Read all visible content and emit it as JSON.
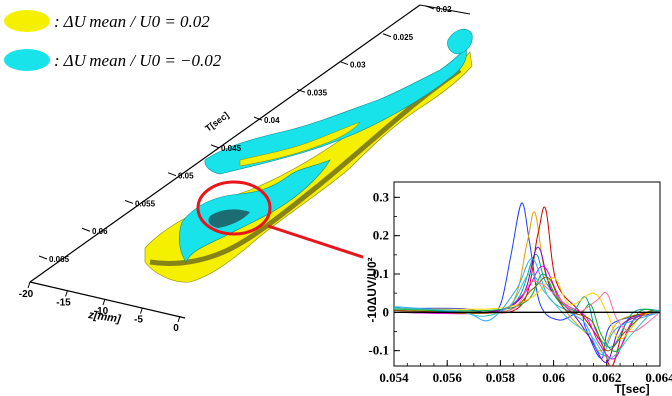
{
  "legend": {
    "items": [
      {
        "label": ": ΔU mean / U0 = 0.02",
        "color": "#f5f000"
      },
      {
        "label": ": ΔU mean / U0 = −0.02",
        "color": "#19e3ea"
      }
    ]
  },
  "plot3d": {
    "t_axis_label": "T[sec]",
    "t_ticks": [
      "0.02",
      "0.025",
      "0.03",
      "0.035",
      "0.04",
      "0.045",
      "0.05",
      "0.055",
      "0.06",
      "0.065"
    ],
    "z_axis_label": "z[mm]",
    "z_ticks": [
      "-20",
      "-15",
      "-10",
      "-5",
      "0"
    ],
    "colors": {
      "yellow": "#f5f000",
      "cyan": "#19e3ea",
      "highlight": "#e8151a"
    }
  },
  "chart_data": {
    "type": "line",
    "xlabel": "T[sec]",
    "ylabel": "-10ΔUV/U0²",
    "xlim": [
      0.054,
      0.064
    ],
    "ylim": [
      -0.14,
      0.34
    ],
    "x_ticks": [
      "0.054",
      "0.056",
      "0.058",
      "0.06",
      "0.062",
      "0.064"
    ],
    "y_ticks": [
      "-0.1",
      "0",
      "0.1",
      "0.2",
      "0.3"
    ],
    "grid": false,
    "series": [
      {
        "color": "#1f3cff",
        "points": [
          [
            0.054,
            0.01
          ],
          [
            0.0565,
            0.01
          ],
          [
            0.0575,
            0.0
          ],
          [
            0.058,
            0.02
          ],
          [
            0.0584,
            0.15
          ],
          [
            0.0588,
            0.285
          ],
          [
            0.0591,
            0.18
          ],
          [
            0.0595,
            0.02
          ],
          [
            0.0602,
            -0.02
          ],
          [
            0.061,
            0.0
          ],
          [
            0.0612,
            -0.04
          ],
          [
            0.0618,
            -0.12
          ],
          [
            0.0622,
            -0.03
          ],
          [
            0.064,
            0.0
          ]
        ]
      },
      {
        "color": "#e0a000",
        "points": [
          [
            0.054,
            0.01
          ],
          [
            0.0568,
            0.0
          ],
          [
            0.0584,
            0.02
          ],
          [
            0.059,
            0.18
          ],
          [
            0.0593,
            0.26
          ],
          [
            0.0597,
            0.1
          ],
          [
            0.0605,
            0.0
          ],
          [
            0.0613,
            -0.06
          ],
          [
            0.0618,
            -0.1
          ],
          [
            0.0625,
            -0.02
          ],
          [
            0.064,
            0.0
          ]
        ]
      },
      {
        "color": "#d00000",
        "points": [
          [
            0.054,
            0.005
          ],
          [
            0.057,
            0.0
          ],
          [
            0.0588,
            0.02
          ],
          [
            0.0594,
            0.2
          ],
          [
            0.0597,
            0.27
          ],
          [
            0.0601,
            0.08
          ],
          [
            0.061,
            0.0
          ],
          [
            0.0618,
            -0.08
          ],
          [
            0.0622,
            -0.14
          ],
          [
            0.0628,
            -0.02
          ],
          [
            0.064,
            0.0
          ]
        ]
      },
      {
        "color": "#00a0a0",
        "points": [
          [
            0.054,
            0.012
          ],
          [
            0.0572,
            0.0
          ],
          [
            0.0586,
            0.03
          ],
          [
            0.0593,
            0.15
          ],
          [
            0.0597,
            0.08
          ],
          [
            0.0606,
            0.0
          ],
          [
            0.0612,
            0.04
          ],
          [
            0.0616,
            -0.05
          ],
          [
            0.0622,
            -0.09
          ],
          [
            0.063,
            0.0
          ],
          [
            0.064,
            0.005
          ]
        ]
      },
      {
        "color": "#7a00c8",
        "points": [
          [
            0.054,
            0.0
          ],
          [
            0.0574,
            0.0
          ],
          [
            0.0588,
            0.04
          ],
          [
            0.0594,
            0.17
          ],
          [
            0.0599,
            0.06
          ],
          [
            0.0608,
            -0.01
          ],
          [
            0.0614,
            -0.07
          ],
          [
            0.062,
            -0.13
          ],
          [
            0.0626,
            -0.03
          ],
          [
            0.064,
            0.0
          ]
        ]
      },
      {
        "color": "#00b030",
        "points": [
          [
            0.054,
            0.008
          ],
          [
            0.0576,
            0.005
          ],
          [
            0.059,
            0.03
          ],
          [
            0.0596,
            0.1
          ],
          [
            0.0602,
            0.03
          ],
          [
            0.061,
            0.0
          ],
          [
            0.0614,
            0.02
          ],
          [
            0.0618,
            -0.06
          ],
          [
            0.0624,
            -0.1
          ],
          [
            0.0632,
            0.0
          ],
          [
            0.064,
            0.0
          ]
        ]
      },
      {
        "color": "#e600e6",
        "points": [
          [
            0.054,
            0.0
          ],
          [
            0.0577,
            0.0
          ],
          [
            0.0589,
            0.05
          ],
          [
            0.0596,
            0.12
          ],
          [
            0.0603,
            0.03
          ],
          [
            0.0612,
            -0.01
          ],
          [
            0.0617,
            -0.08
          ],
          [
            0.0623,
            -0.12
          ],
          [
            0.063,
            -0.02
          ],
          [
            0.064,
            0.0
          ]
        ]
      },
      {
        "color": "#ffd000",
        "points": [
          [
            0.054,
            0.01
          ],
          [
            0.0578,
            0.01
          ],
          [
            0.0592,
            0.04
          ],
          [
            0.06,
            0.09
          ],
          [
            0.0606,
            0.02
          ],
          [
            0.0615,
            0.05
          ],
          [
            0.062,
            0.0
          ],
          [
            0.0625,
            -0.07
          ],
          [
            0.0633,
            -0.01
          ],
          [
            0.064,
            0.0
          ]
        ]
      },
      {
        "color": "#2aa8ff",
        "points": [
          [
            0.054,
            0.015
          ],
          [
            0.0566,
            0.0
          ],
          [
            0.0576,
            -0.02
          ],
          [
            0.0586,
            0.06
          ],
          [
            0.0592,
            0.14
          ],
          [
            0.0598,
            0.04
          ],
          [
            0.0606,
            0.0
          ],
          [
            0.0612,
            -0.03
          ],
          [
            0.0618,
            -0.11
          ],
          [
            0.0624,
            -0.04
          ],
          [
            0.064,
            0.0
          ]
        ]
      },
      {
        "color": "#8a5a00",
        "points": [
          [
            0.054,
            0.005
          ],
          [
            0.058,
            0.0
          ],
          [
            0.0592,
            0.06
          ],
          [
            0.0598,
            0.09
          ],
          [
            0.0604,
            0.01
          ],
          [
            0.0614,
            -0.02
          ],
          [
            0.062,
            -0.1
          ],
          [
            0.0627,
            -0.05
          ],
          [
            0.0635,
            0.0
          ],
          [
            0.064,
            0.0
          ]
        ]
      },
      {
        "color": "#ff6f9a",
        "points": [
          [
            0.054,
            0.0
          ],
          [
            0.057,
            0.0
          ],
          [
            0.0585,
            0.01
          ],
          [
            0.0592,
            0.08
          ],
          [
            0.06,
            0.05
          ],
          [
            0.0608,
            0.0
          ],
          [
            0.0616,
            0.03
          ],
          [
            0.062,
            0.05
          ],
          [
            0.0624,
            -0.02
          ],
          [
            0.063,
            -0.05
          ],
          [
            0.064,
            0.0
          ]
        ]
      },
      {
        "color": "#40c0c0",
        "points": [
          [
            0.054,
            0.01
          ],
          [
            0.0562,
            0.005
          ],
          [
            0.0574,
            -0.01
          ],
          [
            0.0584,
            0.02
          ],
          [
            0.0591,
            0.1
          ],
          [
            0.0597,
            0.05
          ],
          [
            0.0606,
            -0.02
          ],
          [
            0.0614,
            -0.06
          ],
          [
            0.0621,
            -0.12
          ],
          [
            0.0629,
            -0.06
          ],
          [
            0.0637,
            0.0
          ],
          [
            0.064,
            0.0
          ]
        ]
      }
    ]
  }
}
